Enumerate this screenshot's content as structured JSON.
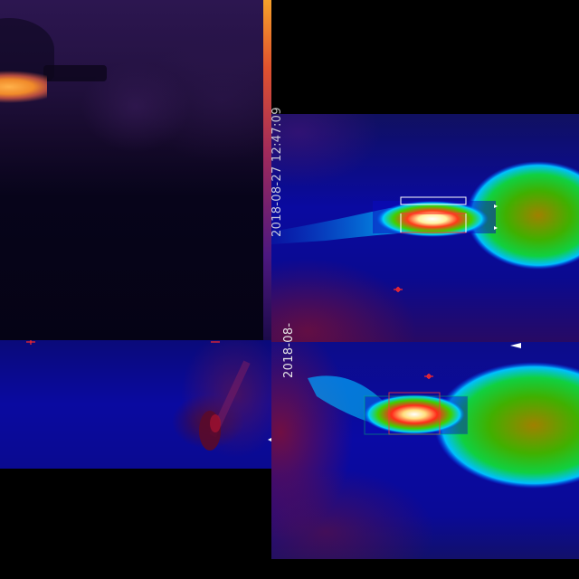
{
  "frames": {
    "ironbow": {
      "palette": "ironbow",
      "colorbar_colors": [
        "#f7a12a",
        "#e0522e",
        "#a02a5c",
        "#4d1880",
        "#1c0b4a"
      ]
    },
    "rainbow_upper": {
      "palette": "rainbow",
      "timestamp": "2018-08-27 12:47:09",
      "box_colors": [
        "#ffffff",
        "#ff3333"
      ]
    },
    "rainbow_lower": {
      "palette": "rainbow",
      "timestamp": "2018-08-",
      "box_colors": [
        "#ffffff",
        "#ff3333"
      ]
    },
    "rainbow_left": {
      "palette": "rainbow"
    }
  },
  "icons": {
    "crosshair": "crosshair-icon",
    "arrow": "arrow-marker-icon"
  }
}
